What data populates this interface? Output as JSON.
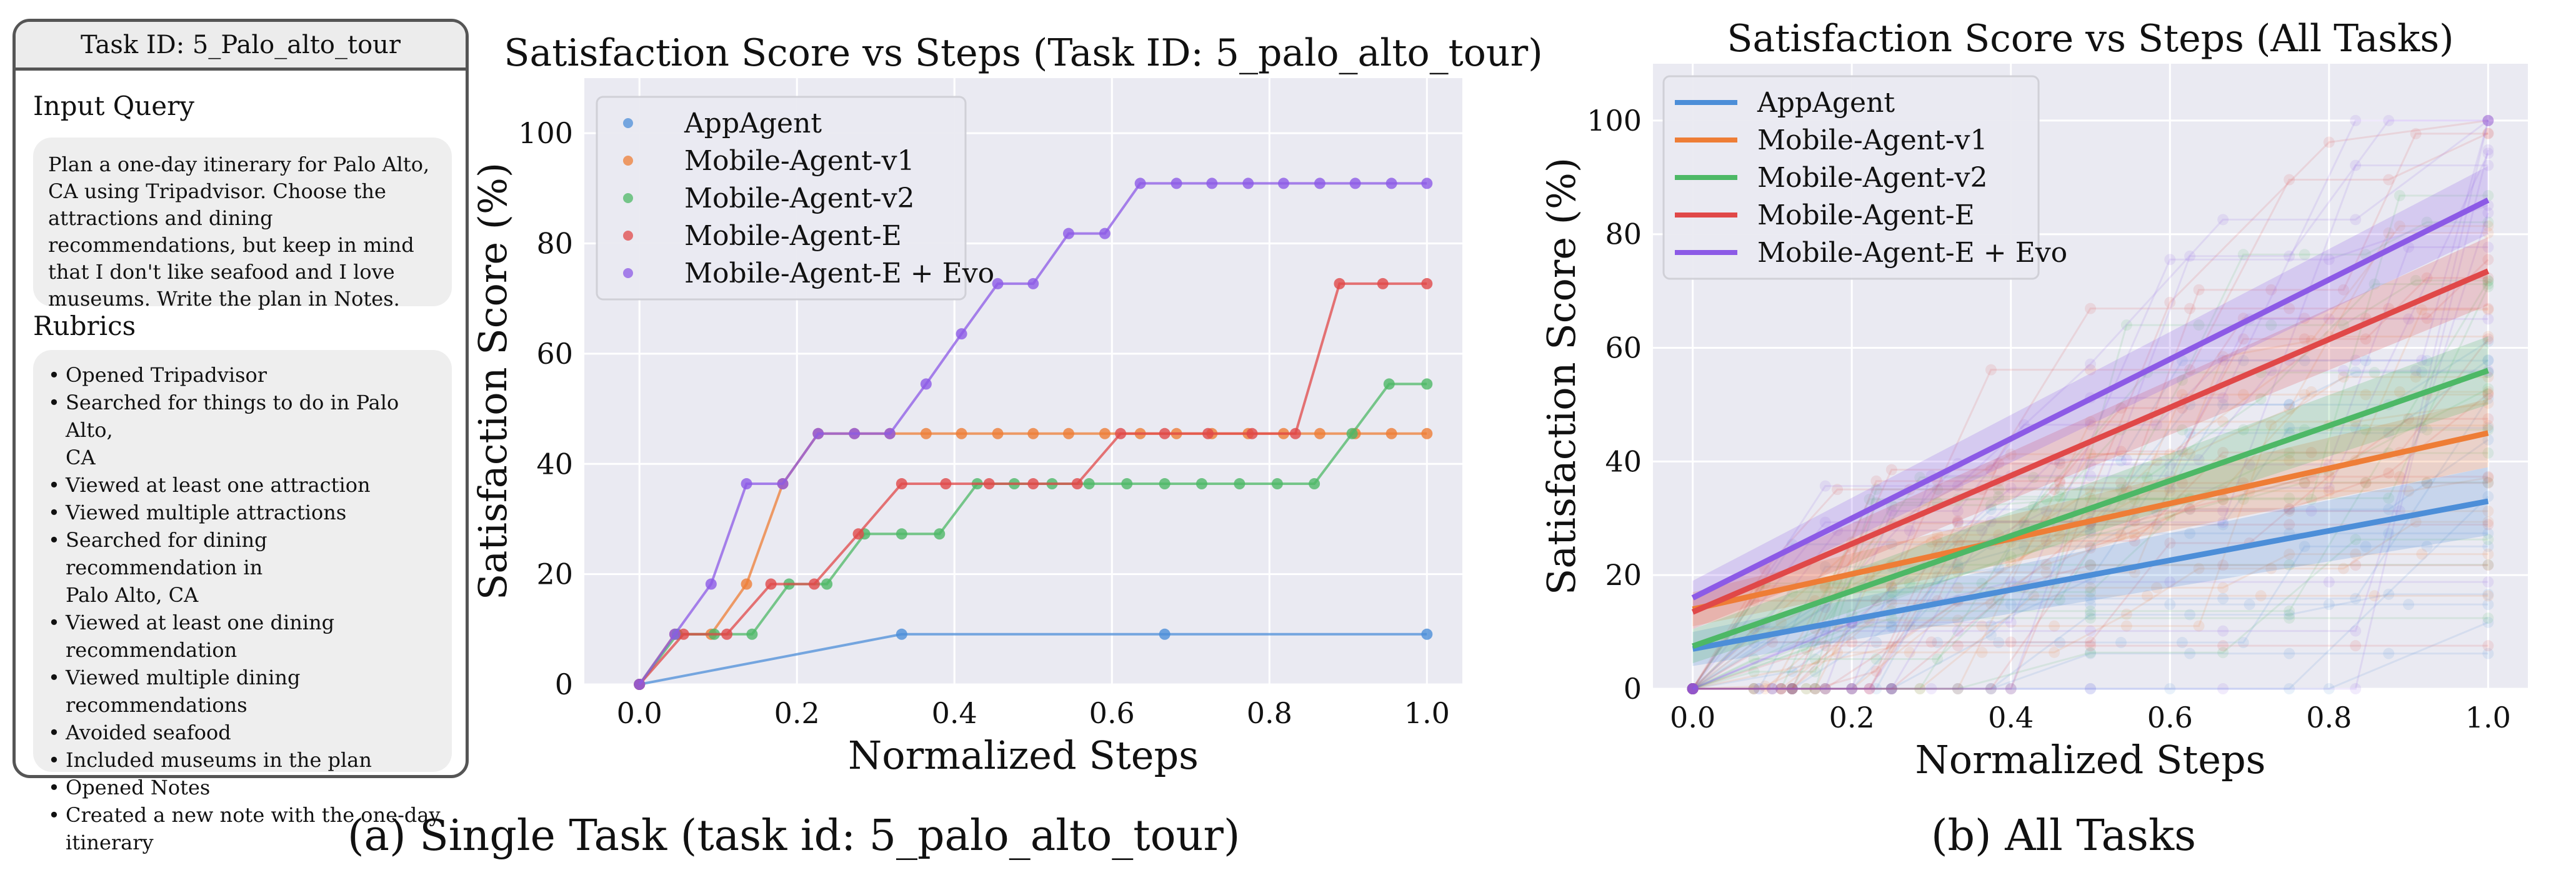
{
  "task_card": {
    "title": "Task ID: 5_Palo_alto_tour",
    "input_query_heading": "Input Query",
    "input_query": "Plan a one-day itinerary for Palo Alto, CA using Tripadvisor. Choose the attractions and dining recommendations, but keep in mind that I don't like seafood and I love museums. Write the plan in Notes.",
    "rubrics_heading": "Rubrics",
    "rubrics": [
      [
        "Opened Tripadvisor"
      ],
      [
        "Searched for things to do in Palo Alto,",
        "CA"
      ],
      [
        "Viewed at least one attraction"
      ],
      [
        "Viewed multiple attractions"
      ],
      [
        "Searched for dining recommendation in",
        "Palo Alto, CA"
      ],
      [
        "Viewed at least one dining",
        "recommendation"
      ],
      [
        "Viewed multiple dining recommendations"
      ],
      [
        "Avoided seafood"
      ],
      [
        "Included museums in the plan"
      ],
      [
        "Opened Notes"
      ],
      [
        "Created a new note with the one-day",
        "itinerary"
      ]
    ]
  },
  "captions": {
    "a": "(a)  Single Task (task id: 5_palo_alto_tour)",
    "b": "(b)  All Tasks"
  },
  "colors": {
    "plot_bg": "#eaeaf2",
    "grid": "#ffffff",
    "AppAgent": "#4c8ed8",
    "Mobile-Agent-v1": "#ee7d36",
    "Mobile-Agent-v2": "#4db866",
    "Mobile-Agent-E": "#e04848",
    "Mobile-Agent-E + Evo": "#8c5ae6"
  },
  "chart_data": [
    {
      "type": "line",
      "title": "Satisfaction Score vs Steps (Task ID: 5_palo_alto_tour)",
      "xlabel": "Normalized Steps",
      "ylabel": "Satisfaction Score (%)",
      "xlim": [
        -0.07,
        1.045
      ],
      "ylim": [
        0,
        110
      ],
      "xticks": [
        0.0,
        0.2,
        0.4,
        0.6,
        0.8,
        1.0
      ],
      "xtick_labels": [
        "0.0",
        "0.2",
        "0.4",
        "0.6",
        "0.8",
        "1.0"
      ],
      "yticks": [
        0,
        20,
        40,
        60,
        80,
        100
      ],
      "ytick_labels": [
        "0",
        "20",
        "40",
        "60",
        "80",
        "100"
      ],
      "grid": true,
      "legend": "top-left",
      "markers": true,
      "series": [
        {
          "name": "AppAgent",
          "x": [
            0.0,
            0.333,
            0.667,
            1.0
          ],
          "y": [
            0,
            9.1,
            9.1,
            9.1
          ]
        },
        {
          "name": "Mobile-Agent-v1",
          "x": [
            0.0,
            0.045,
            0.091,
            0.136,
            0.182,
            0.227,
            0.273,
            0.318,
            0.364,
            0.409,
            0.455,
            0.5,
            0.545,
            0.591,
            0.636,
            0.682,
            0.727,
            0.773,
            0.818,
            0.864,
            0.909,
            0.955,
            1.0
          ],
          "y": [
            0,
            9.1,
            9.1,
            18.2,
            36.4,
            45.5,
            45.5,
            45.5,
            45.5,
            45.5,
            45.5,
            45.5,
            45.5,
            45.5,
            45.5,
            45.5,
            45.5,
            45.5,
            45.5,
            45.5,
            45.5,
            45.5,
            45.5
          ]
        },
        {
          "name": "Mobile-Agent-v2",
          "x": [
            0.0,
            0.048,
            0.095,
            0.143,
            0.19,
            0.238,
            0.286,
            0.333,
            0.381,
            0.429,
            0.476,
            0.524,
            0.571,
            0.619,
            0.667,
            0.714,
            0.762,
            0.81,
            0.857,
            0.905,
            0.952,
            1.0
          ],
          "y": [
            0,
            9.1,
            9.1,
            9.1,
            18.2,
            18.2,
            27.3,
            27.3,
            27.3,
            36.4,
            36.4,
            36.4,
            36.4,
            36.4,
            36.4,
            36.4,
            36.4,
            36.4,
            36.4,
            45.5,
            54.5,
            54.5
          ]
        },
        {
          "name": "Mobile-Agent-E",
          "x": [
            0.0,
            0.056,
            0.111,
            0.167,
            0.222,
            0.278,
            0.333,
            0.389,
            0.444,
            0.5,
            0.556,
            0.611,
            0.667,
            0.722,
            0.778,
            0.833,
            0.889,
            0.944,
            1.0
          ],
          "y": [
            0,
            9.1,
            9.1,
            18.2,
            18.2,
            27.3,
            36.4,
            36.4,
            36.4,
            36.4,
            36.4,
            45.5,
            45.5,
            45.5,
            45.5,
            45.5,
            72.7,
            72.7,
            72.7
          ]
        },
        {
          "name": "Mobile-Agent-E + Evo",
          "x": [
            0.0,
            0.045,
            0.091,
            0.136,
            0.182,
            0.227,
            0.273,
            0.318,
            0.364,
            0.409,
            0.455,
            0.5,
            0.545,
            0.591,
            0.636,
            0.682,
            0.727,
            0.773,
            0.818,
            0.864,
            0.909,
            0.955,
            1.0
          ],
          "y": [
            0,
            9.1,
            18.2,
            36.4,
            36.4,
            45.5,
            45.5,
            45.5,
            54.5,
            63.6,
            72.7,
            72.7,
            81.8,
            81.8,
            90.9,
            90.9,
            90.9,
            90.9,
            90.9,
            90.9,
            90.9,
            90.9,
            90.9
          ]
        }
      ]
    },
    {
      "type": "line",
      "title": "Satisfaction Score vs Steps (All Tasks)",
      "xlabel": "Normalized Steps",
      "ylabel": "Satisfaction Score (%)",
      "xlim": [
        -0.05,
        1.05
      ],
      "ylim": [
        0,
        110
      ],
      "xticks": [
        0.0,
        0.2,
        0.4,
        0.6,
        0.8,
        1.0
      ],
      "xtick_labels": [
        "0.0",
        "0.2",
        "0.4",
        "0.6",
        "0.8",
        "1.0"
      ],
      "yticks": [
        0,
        20,
        40,
        60,
        80,
        100
      ],
      "ytick_labels": [
        "0",
        "20",
        "40",
        "60",
        "80",
        "100"
      ],
      "grid": true,
      "legend": "top-left",
      "series": [
        {
          "name": "AppAgent",
          "trend": {
            "x": [
              0.0,
              1.0
            ],
            "y": [
              7,
              33
            ]
          }
        },
        {
          "name": "Mobile-Agent-v1",
          "trend": {
            "x": [
              0.0,
              1.0
            ],
            "y": [
              14,
              45
            ]
          }
        },
        {
          "name": "Mobile-Agent-v2",
          "trend": {
            "x": [
              0.0,
              1.0
            ],
            "y": [
              7.5,
              56
            ]
          }
        },
        {
          "name": "Mobile-Agent-E",
          "trend": {
            "x": [
              0.0,
              1.0
            ],
            "y": [
              13.5,
              73.5
            ]
          }
        },
        {
          "name": "Mobile-Agent-E + Evo",
          "trend": {
            "x": [
              0.0,
              1.0
            ],
            "y": [
              16,
              86
            ]
          }
        }
      ]
    }
  ]
}
